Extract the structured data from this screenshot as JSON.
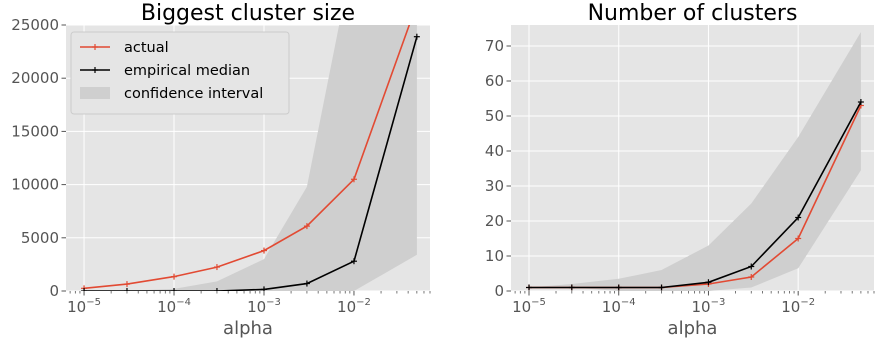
{
  "chart_data": [
    {
      "type": "line",
      "title": "Biggest cluster size",
      "xlabel": "alpha",
      "ylabel": "",
      "xscale": "log",
      "xlim": [
        6.3e-06,
        0.07
      ],
      "ylim": [
        0,
        25000
      ],
      "x_ticks": [
        {
          "base": "10",
          "exp": "−5"
        },
        {
          "base": "10",
          "exp": "−4"
        },
        {
          "base": "10",
          "exp": "−3"
        },
        {
          "base": "10",
          "exp": "−2"
        }
      ],
      "x_tick_values": [
        1e-05,
        0.0001,
        0.001,
        0.01
      ],
      "y_ticks": [
        "0",
        "5000",
        "10000",
        "15000",
        "20000",
        "25000"
      ],
      "y_tick_values": [
        0,
        5000,
        10000,
        15000,
        20000,
        25000
      ],
      "x": [
        1e-05,
        3e-05,
        0.0001,
        0.0003,
        0.001,
        0.003,
        0.01,
        0.05
      ],
      "series": [
        {
          "name": "actual",
          "color": "#e24a33",
          "values": [
            250,
            650,
            1350,
            2250,
            3800,
            6100,
            10500,
            27000
          ]
        },
        {
          "name": "empirical median",
          "color": "#000000",
          "values": [
            0,
            0,
            0,
            0,
            150,
            700,
            2800,
            23900
          ]
        }
      ],
      "band": {
        "name": "confidence interval",
        "color": "#cfcfcf",
        "lower": [
          0,
          0,
          0,
          0,
          0,
          0,
          0,
          3400
        ],
        "upper": [
          0,
          30,
          200,
          900,
          3000,
          9800,
          32000,
          34000
        ]
      },
      "grid": true,
      "legend": "top-left"
    },
    {
      "type": "line",
      "title": "Number of clusters",
      "xlabel": "alpha",
      "ylabel": "",
      "xscale": "log",
      "xlim": [
        6.3e-06,
        0.07
      ],
      "ylim": [
        0,
        76
      ],
      "x_ticks": [
        {
          "base": "10",
          "exp": "−5"
        },
        {
          "base": "10",
          "exp": "−4"
        },
        {
          "base": "10",
          "exp": "−3"
        },
        {
          "base": "10",
          "exp": "−2"
        }
      ],
      "x_tick_values": [
        1e-05,
        0.0001,
        0.001,
        0.01
      ],
      "y_ticks": [
        "0",
        "10",
        "20",
        "30",
        "40",
        "50",
        "60",
        "70"
      ],
      "y_tick_values": [
        0,
        10,
        20,
        30,
        40,
        50,
        60,
        70
      ],
      "x": [
        1e-05,
        3e-05,
        0.0001,
        0.0003,
        0.001,
        0.003,
        0.01,
        0.05
      ],
      "series": [
        {
          "name": "actual",
          "color": "#e24a33",
          "values": [
            1,
            1,
            1,
            1,
            2,
            4,
            15,
            53
          ]
        },
        {
          "name": "empirical median",
          "color": "#000000",
          "values": [
            1,
            1,
            1,
            1,
            2.5,
            7,
            21,
            54
          ]
        }
      ],
      "band": {
        "name": "confidence interval",
        "color": "#cfcfcf",
        "lower": [
          1,
          1,
          0,
          0,
          0,
          1,
          6.5,
          34.5
        ],
        "upper": [
          1,
          2,
          3.5,
          6,
          13,
          25,
          44,
          74
        ]
      },
      "grid": true,
      "legend": ""
    }
  ]
}
